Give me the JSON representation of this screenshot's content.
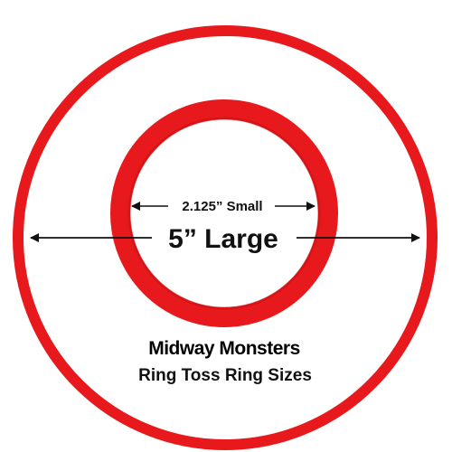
{
  "colors": {
    "ring": "#e8191c",
    "ring_shade": "#c90f12",
    "arrow": "#111111",
    "background": "#ffffff"
  },
  "labels": {
    "small": "2.125” Small",
    "large": "5” Large"
  },
  "brand": {
    "name": "Midway Monsters",
    "caption": "Ring Toss Ring Sizes"
  }
}
